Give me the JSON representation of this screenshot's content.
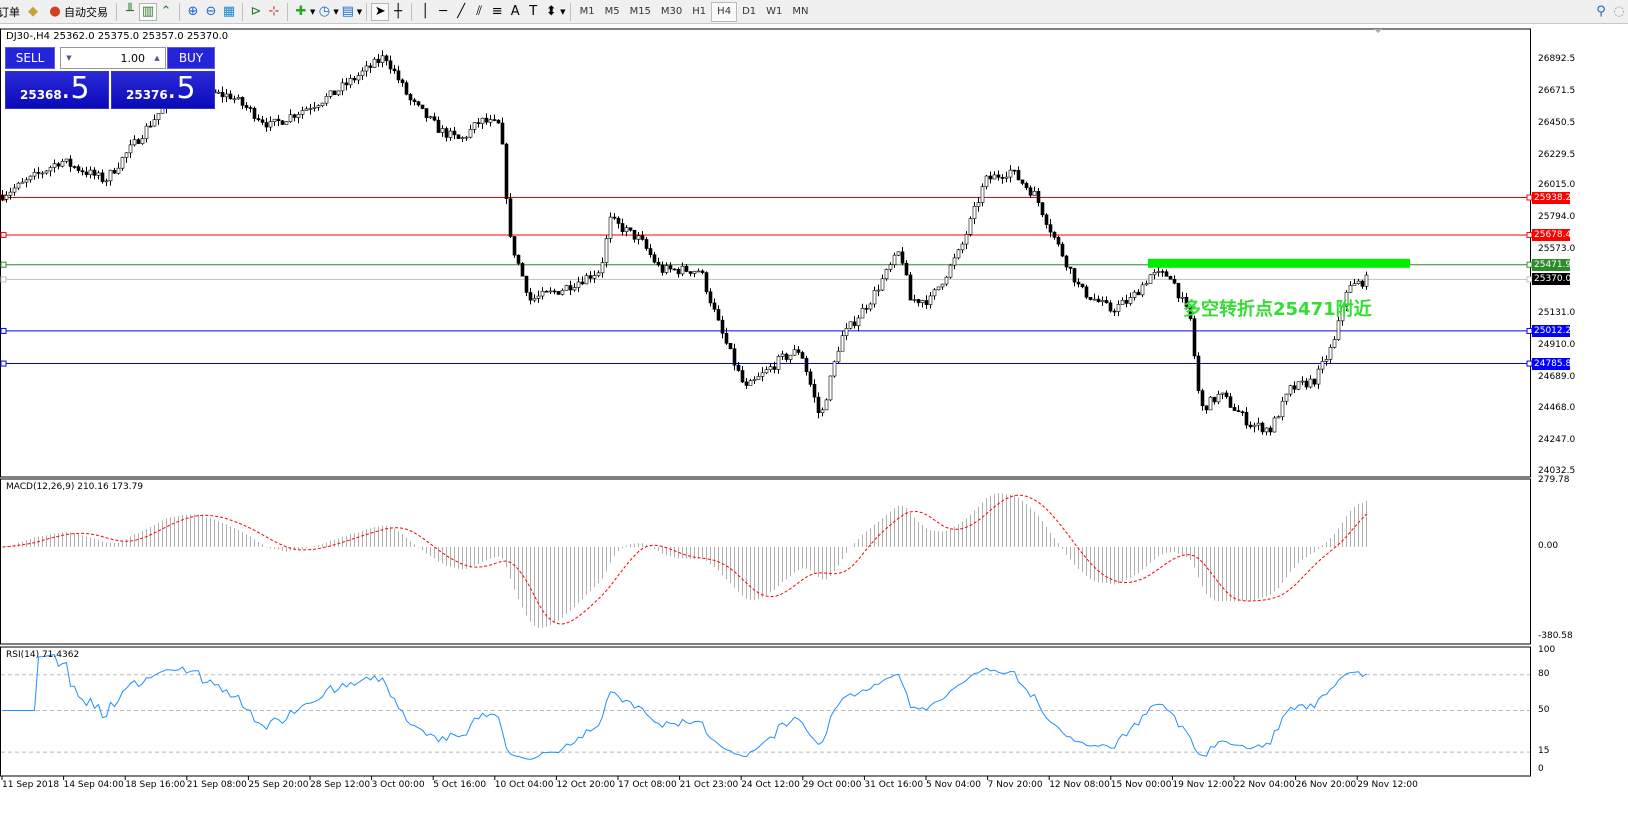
{
  "toolbar": {
    "order_label": "订单",
    "autotrade_label": "自动交易",
    "icons": [
      "book-icon",
      "bar-chart-icon",
      "candlestick-icon",
      "line-chart-icon",
      "zoom-in-icon",
      "zoom-out-icon",
      "tile-windows-icon",
      "chart-shift-icon",
      "autoscroll-icon",
      "indicators-icon",
      "periods-clock-icon",
      "templates-icon",
      "cursor-icon",
      "crosshair-icon",
      "vertical-line-icon",
      "horizontal-line-icon",
      "trendline-icon",
      "equidistant-channel-icon",
      "fibonacci-icon",
      "text-icon",
      "text-label-icon",
      "arrows-icon",
      "search-icon",
      "community-icon"
    ],
    "text_tool": "A",
    "timeframes": [
      "M1",
      "M5",
      "M15",
      "M30",
      "H1",
      "H4",
      "D1",
      "W1",
      "MN"
    ],
    "active_timeframe": "H4"
  },
  "chart": {
    "symbol_line": "DJ30-,H4  25362.0 25375.0 25357.0 25370.0",
    "trade_panel": {
      "sell": "SELL",
      "buy": "BUY",
      "lot": "1.00",
      "sell_big": "25368",
      "sell_frac": ".5",
      "buy_big": "25376",
      "buy_frac": ".5"
    },
    "annotation": "多空转折点25471附近",
    "annotation_color": "#33dd33",
    "price_axis": [
      "26892.5",
      "26671.5",
      "26450.5",
      "26229.5",
      "26015.0",
      "25794.0",
      "25573.0",
      "25131.0",
      "24910.0",
      "24689.0",
      "24468.0",
      "24247.0",
      "24032.5"
    ],
    "levels": [
      {
        "value": "25938.2",
        "color": "#ff0000"
      },
      {
        "value": "25678.4",
        "color": "#ff0000"
      },
      {
        "value": "25471.9",
        "color": "#2e8b2e"
      },
      {
        "value": "25370.0",
        "color": "#000000"
      },
      {
        "value": "25012.2",
        "color": "#0000ff"
      },
      {
        "value": "24785.8",
        "color": "#0000ff"
      }
    ],
    "macd_label": "MACD(12,26,9) 210.16 173.79",
    "macd_axis": [
      "279.78",
      "0.00",
      "-380.58"
    ],
    "rsi_label": "RSI(14) 71.4362",
    "rsi_axis": [
      "100",
      "80",
      "50",
      "15",
      "0"
    ],
    "time_axis": [
      "11 Sep 2018",
      "14 Sep 04:00",
      "18 Sep 16:00",
      "21 Sep 08:00",
      "25 Sep 20:00",
      "28 Sep 12:00",
      "3 Oct 00:00",
      "5 Oct 16:00",
      "10 Oct 04:00",
      "12 Oct 20:00",
      "17 Oct 08:00",
      "21 Oct 23:00",
      "24 Oct 12:00",
      "29 Oct 00:00",
      "31 Oct 16:00",
      "5 Nov 04:00",
      "7 Nov 20:00",
      "12 Nov 08:00",
      "15 Nov 00:00",
      "19 Nov 12:00",
      "22 Nov 04:00",
      "26 Nov 20:00",
      "29 Nov 12:00"
    ]
  },
  "chart_data": {
    "type": "candlestick",
    "timeframe": "H4",
    "approx_close_path": [
      25953,
      26022,
      26195,
      26057,
      26540,
      26678,
      26644,
      26436,
      26644,
      26920,
      26609,
      26402,
      26333,
      26471,
      26436,
      25642,
      25228,
      25297,
      25435,
      25780,
      25642,
      25435,
      25435,
      25020,
      24606,
      24814,
      24883,
      24399,
      24952,
      25228,
      25573,
      25228,
      25228,
      25573,
      26057,
      26125,
      25953,
      25642,
      25297,
      25158,
      25228,
      25400,
      25400,
      25089,
      24467,
      24571,
      24364,
      24329,
      24606,
      24675,
      24952,
      25297,
      25366
    ],
    "ylim": [
      24032.5,
      26892.5
    ],
    "resistance_zone": 25471
  }
}
